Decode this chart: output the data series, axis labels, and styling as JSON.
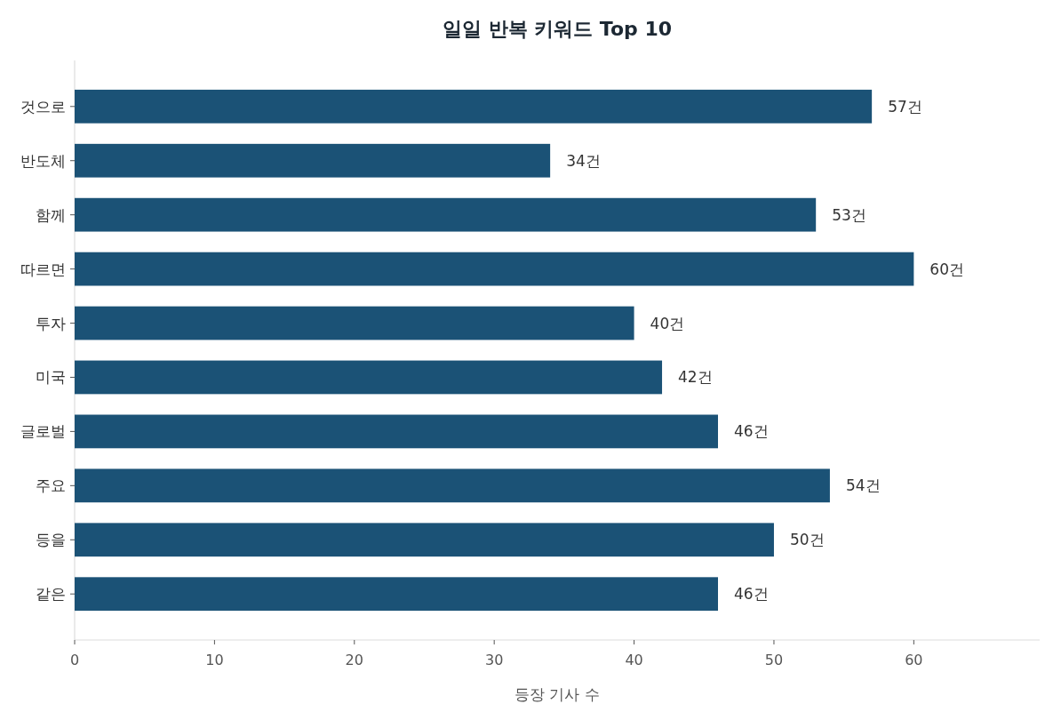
{
  "chart_data": {
    "type": "bar",
    "orientation": "horizontal",
    "title": "일일 반복 키워드 Top 10",
    "xlabel": "등장 기사 수",
    "categories": [
      "것으로",
      "반도체",
      "함께",
      "따르면",
      "투자",
      "미국",
      "글로벌",
      "주요",
      "등을",
      "같은"
    ],
    "values": [
      57,
      34,
      53,
      60,
      40,
      42,
      46,
      54,
      50,
      46
    ],
    "value_labels": [
      "57건",
      "34건",
      "53건",
      "60건",
      "40건",
      "42건",
      "46건",
      "54건",
      "50건",
      "46건"
    ],
    "color": "#1b5276",
    "xlim": [
      0,
      69
    ],
    "xticks": [
      0,
      10,
      20,
      30,
      40,
      50,
      60
    ]
  }
}
